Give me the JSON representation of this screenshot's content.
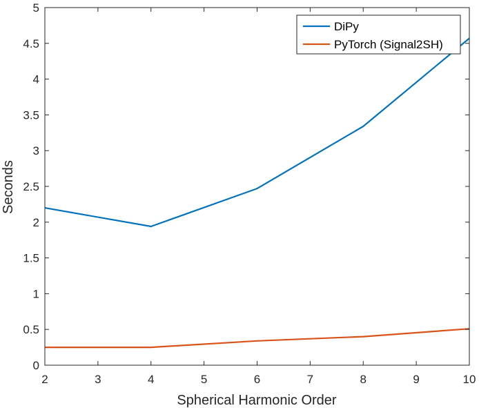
{
  "chart_data": {
    "type": "line",
    "title": "",
    "xlabel": "Spherical Harmonic Order",
    "ylabel": "Seconds",
    "xlim": [
      2,
      10
    ],
    "ylim": [
      0,
      5
    ],
    "xticks": [
      "2",
      "3",
      "4",
      "5",
      "6",
      "7",
      "8",
      "9",
      "10"
    ],
    "yticks": [
      "0",
      "0.5",
      "1",
      "1.5",
      "2",
      "2.5",
      "3",
      "3.5",
      "4",
      "4.5",
      "5"
    ],
    "x": [
      2,
      4,
      6,
      8,
      10
    ],
    "series": [
      {
        "name": "DiPy",
        "color": "#0072BD",
        "values": [
          2.2,
          1.94,
          2.47,
          3.34,
          4.57
        ]
      },
      {
        "name": "PyTorch (Signal2SH)",
        "color": "#D95319",
        "values": [
          0.25,
          0.25,
          0.34,
          0.4,
          0.51
        ]
      }
    ],
    "grid": false,
    "legend": "top-right"
  }
}
